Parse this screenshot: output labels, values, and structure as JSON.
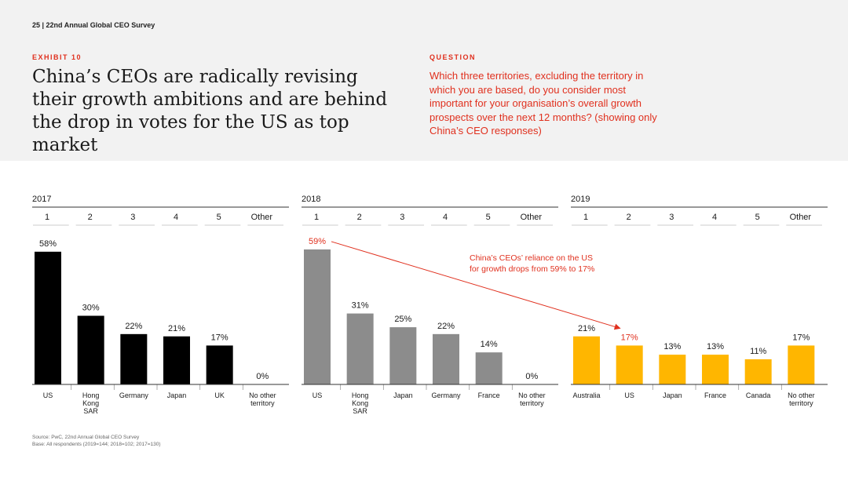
{
  "header": {
    "page_ref": "25  |  22nd Annual Global CEO Survey",
    "exhibit_label": "EXHIBIT 10",
    "title": "China’s CEOs are radically revising their growth ambitions and are behind the drop in votes for the US as top market",
    "question_label": "QUESTION",
    "question": "Which three territories, excluding the territory in which you are based, do you consider most important for your organisation’s overall growth prospects over the next 12 months? (showing only China’s CEO responses)"
  },
  "colors": {
    "accent": "#e0301e",
    "bar_2017": "#000000",
    "bar_2018": "#8c8c8c",
    "bar_2019": "#ffb600"
  },
  "chart_data": [
    {
      "type": "bar",
      "title": "2017",
      "rank_labels": [
        "1",
        "2",
        "3",
        "4",
        "5",
        "Other"
      ],
      "categories": [
        "US",
        "Hong\nKong\nSAR",
        "Germany",
        "Japan",
        "UK",
        "No other\nterritory"
      ],
      "values": [
        58,
        30,
        22,
        21,
        17,
        0
      ],
      "value_labels": [
        "58%",
        "30%",
        "22%",
        "21%",
        "17%",
        "0%"
      ],
      "ylim": [
        0,
        60
      ],
      "grid": false
    },
    {
      "type": "bar",
      "title": "2018",
      "rank_labels": [
        "1",
        "2",
        "3",
        "4",
        "5",
        "Other"
      ],
      "categories": [
        "US",
        "Hong\nKong\nSAR",
        "Japan",
        "Germany",
        "France",
        "No other\nterritory"
      ],
      "values": [
        59,
        31,
        25,
        22,
        14,
        0
      ],
      "value_labels": [
        "59%",
        "31%",
        "25%",
        "22%",
        "14%",
        "0%"
      ],
      "ylim": [
        0,
        60
      ],
      "grid": false
    },
    {
      "type": "bar",
      "title": "2019",
      "rank_labels": [
        "1",
        "2",
        "3",
        "4",
        "5",
        "Other"
      ],
      "categories": [
        "Australia",
        "US",
        "Japan",
        "France",
        "Canada",
        "No other\nterritory"
      ],
      "values": [
        21,
        17,
        13,
        13,
        11,
        17
      ],
      "value_labels": [
        "21%",
        "17%",
        "13%",
        "13%",
        "11%",
        "17%"
      ],
      "ylim": [
        0,
        60
      ],
      "grid": false
    }
  ],
  "annotation": {
    "text": "China’s CEOs’ reliance on the US\nfor growth drops from 59% to 17%"
  },
  "footer": {
    "source": "Source: PwC, 22nd Annual Global CEO Survey",
    "base": "Base: All respondents (2019=144; 2018=102; 2017=130)"
  }
}
